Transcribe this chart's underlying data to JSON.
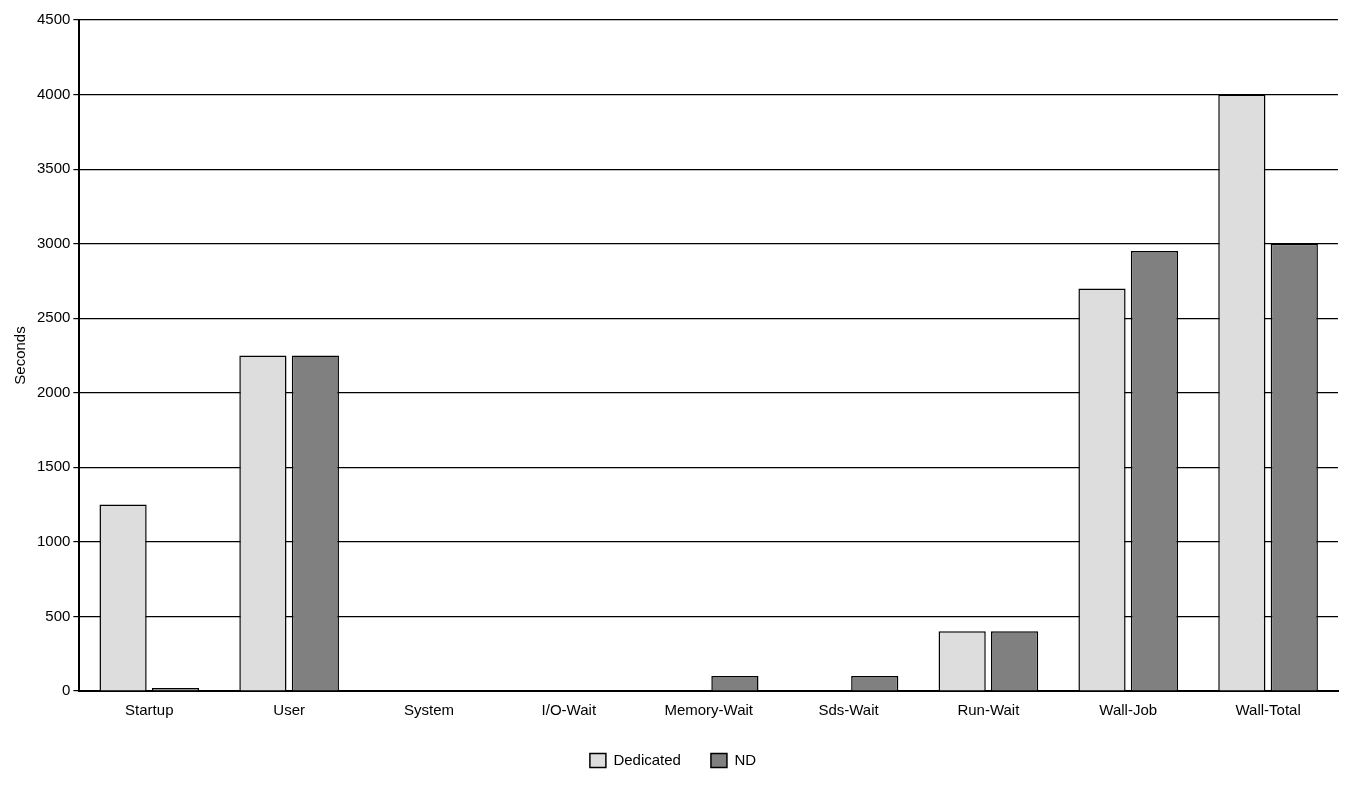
{
  "chart_data": {
    "type": "bar",
    "ylabel": "Seconds",
    "categories": [
      "Startup",
      "User",
      "System",
      "I/O-Wait",
      "Memory-Wait",
      "Sds-Wait",
      "Run-Wait",
      "Wall-Job",
      "Wall-Total"
    ],
    "series": [
      {
        "name": "Dedicated",
        "color": "#dddddd",
        "values": [
          1250,
          2250,
          0,
          0,
          0,
          0,
          400,
          2700,
          4000
        ]
      },
      {
        "name": "ND",
        "color": "#808080",
        "values": [
          20,
          2250,
          0,
          0,
          100,
          100,
          400,
          2950,
          3000
        ]
      }
    ],
    "ylim": [
      0,
      4500
    ],
    "yticks": [
      0,
      500,
      1000,
      1500,
      2000,
      2500,
      3000,
      3500,
      4000,
      4500
    ],
    "grid": "y",
    "legend": "bottom"
  }
}
